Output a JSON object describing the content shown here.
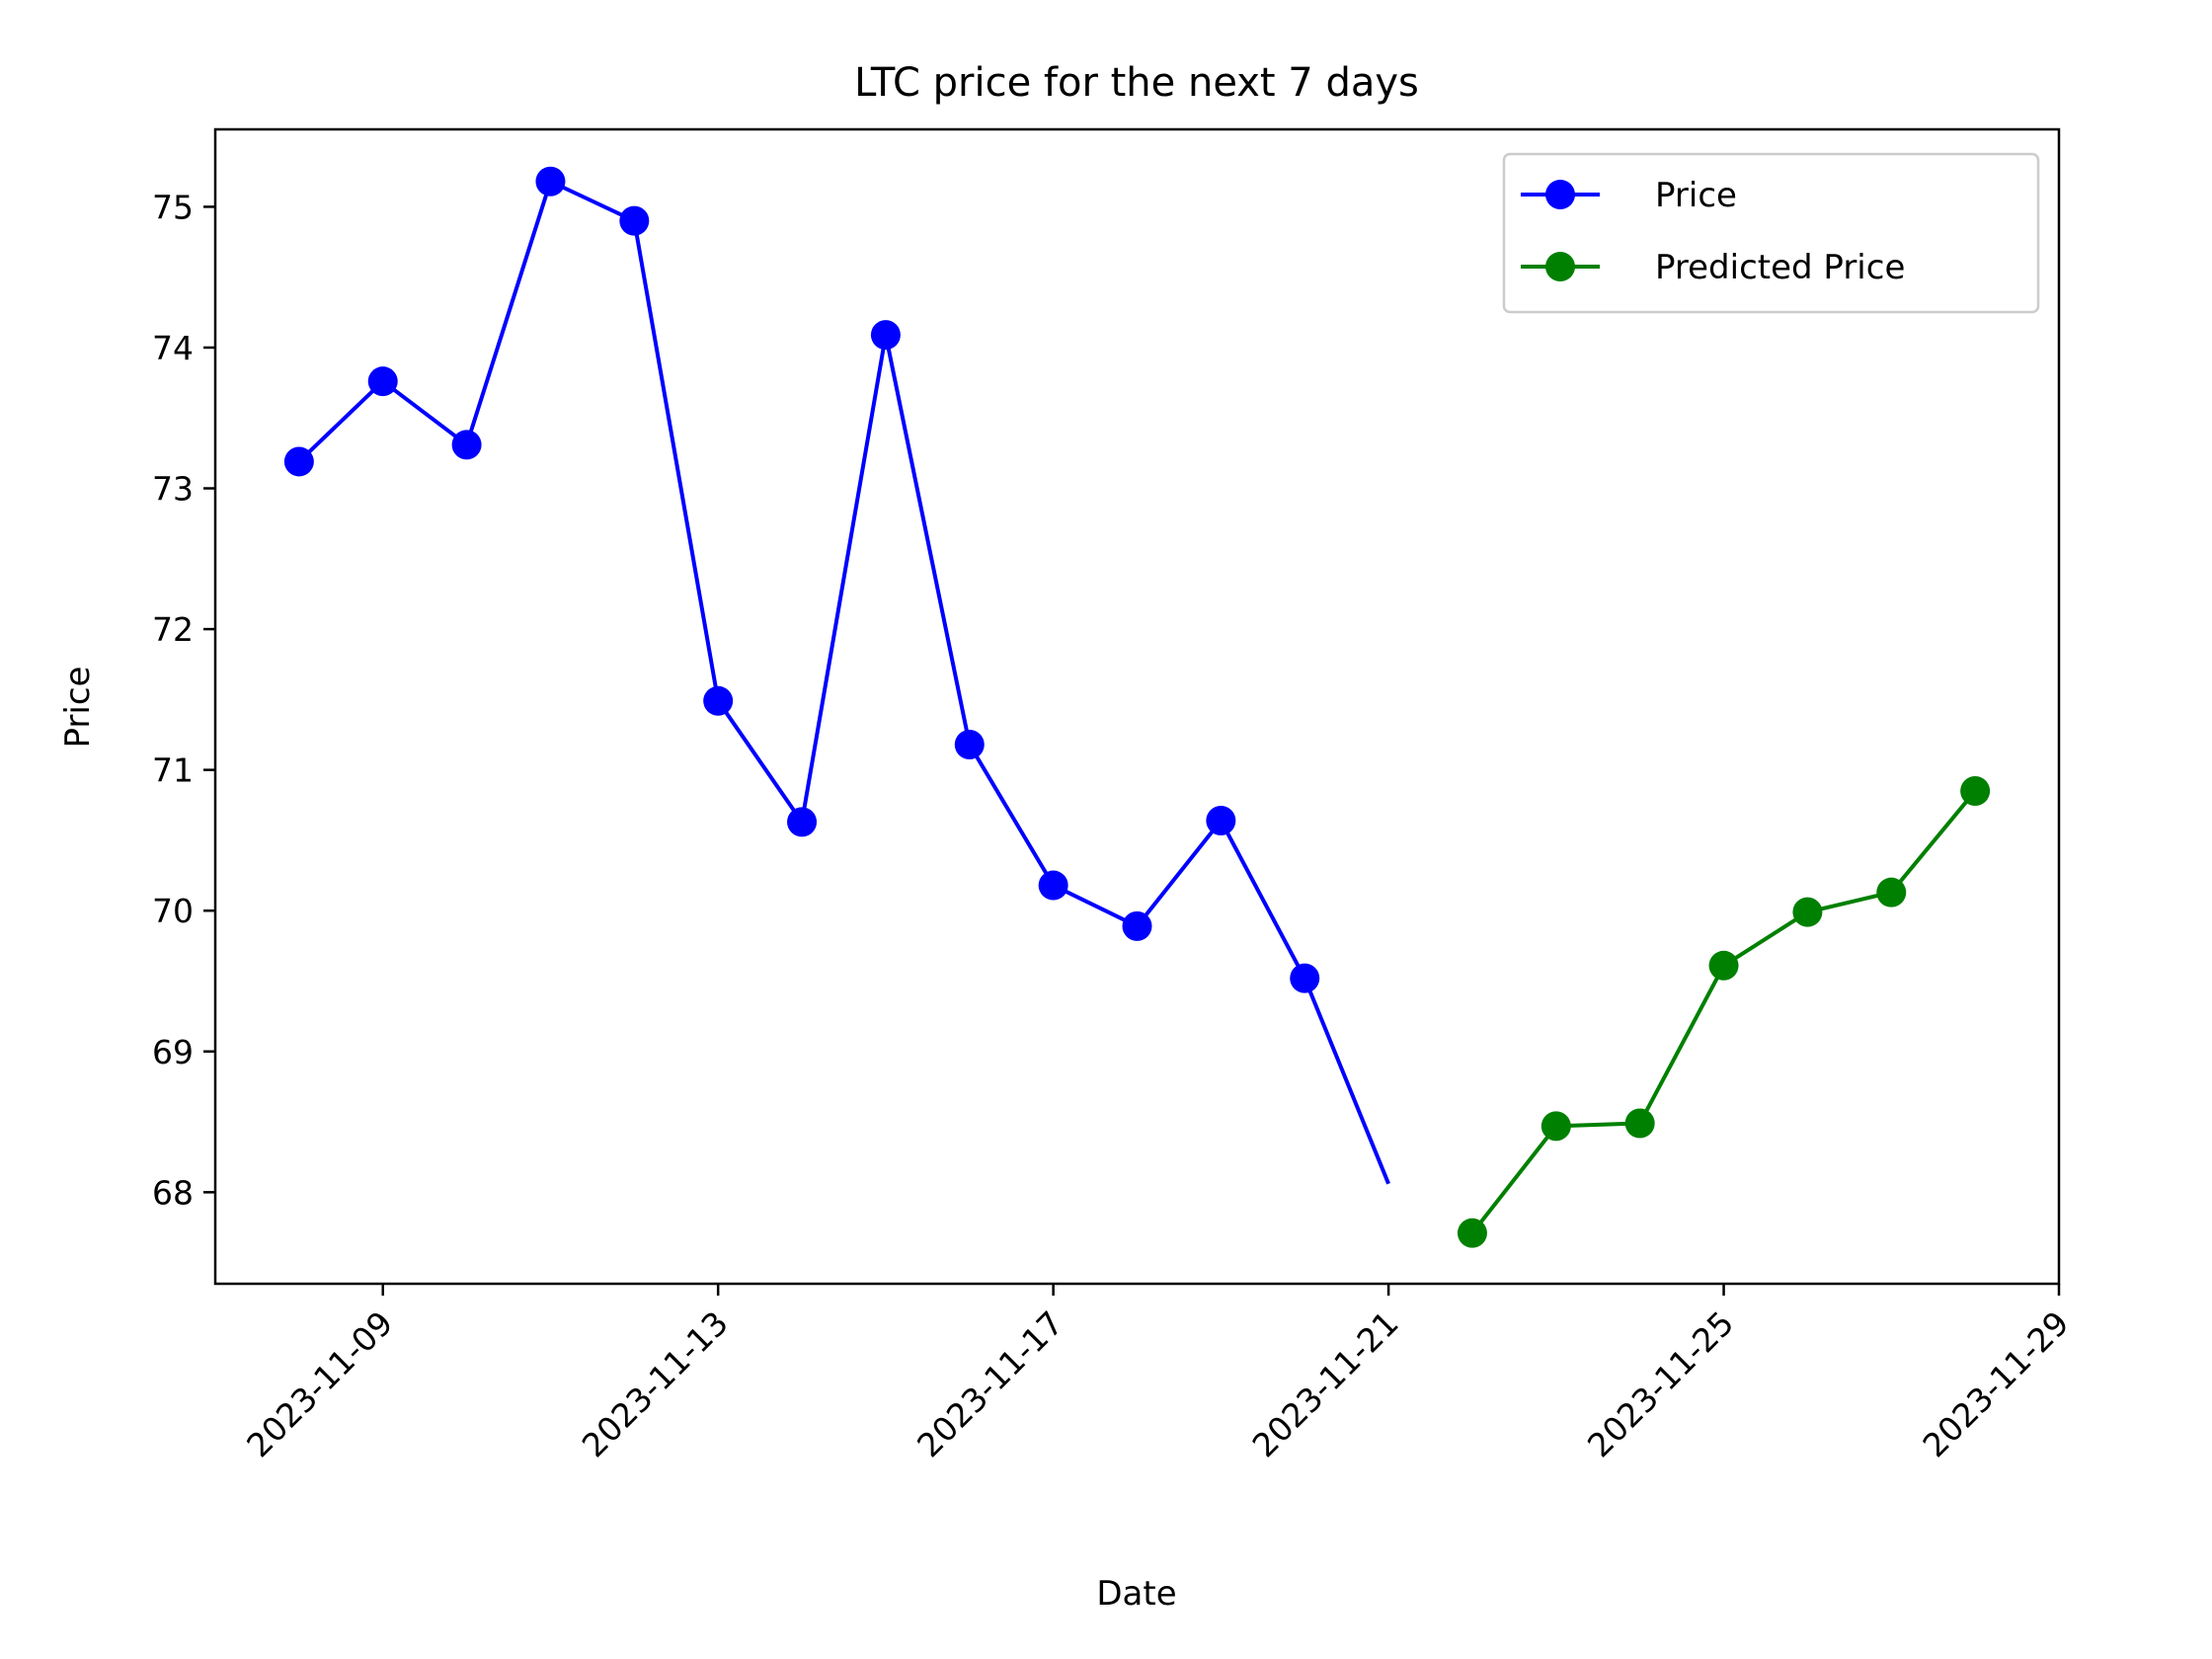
{
  "chart_data": {
    "type": "line",
    "title": "LTC price for the next 7 days",
    "xlabel": "Date",
    "ylabel": "Price",
    "xlim": [
      "2023-11-07",
      "2023-11-29"
    ],
    "ylim": [
      67.35,
      75.55
    ],
    "x_ticks": [
      "2023-11-09",
      "2023-11-13",
      "2023-11-17",
      "2023-11-21",
      "2023-11-25",
      "2023-11-29"
    ],
    "y_ticks": [
      68,
      69,
      70,
      71,
      72,
      73,
      74,
      75
    ],
    "grid": false,
    "legend_position": "top-right",
    "series": [
      {
        "name": "Price",
        "color": "#0000ff",
        "marker": "circle",
        "points": [
          {
            "x": "2023-11-08",
            "y": 73.19
          },
          {
            "x": "2023-11-09",
            "y": 73.76
          },
          {
            "x": "2023-11-10",
            "y": 73.31
          },
          {
            "x": "2023-11-11",
            "y": 75.18
          },
          {
            "x": "2023-11-12",
            "y": 74.9
          },
          {
            "x": "2023-11-13",
            "y": 71.49
          },
          {
            "x": "2023-11-14",
            "y": 70.63
          },
          {
            "x": "2023-11-15",
            "y": 74.09
          },
          {
            "x": "2023-11-16",
            "y": 71.18
          },
          {
            "x": "2023-11-17",
            "y": 70.18
          },
          {
            "x": "2023-11-18",
            "y": 69.89
          },
          {
            "x": "2023-11-19",
            "y": 70.64
          },
          {
            "x": "2023-11-20",
            "y": 69.52
          },
          {
            "x": "2023-11-21",
            "y": 68.06,
            "marker": false
          }
        ]
      },
      {
        "name": "Predicted Price",
        "color": "#008000",
        "marker": "circle",
        "points": [
          {
            "x": "2023-11-22",
            "y": 67.71
          },
          {
            "x": "2023-11-23",
            "y": 68.47
          },
          {
            "x": "2023-11-24",
            "y": 68.49
          },
          {
            "x": "2023-11-25",
            "y": 69.61
          },
          {
            "x": "2023-11-26",
            "y": 69.99
          },
          {
            "x": "2023-11-27",
            "y": 70.13
          },
          {
            "x": "2023-11-28",
            "y": 70.85
          }
        ]
      }
    ]
  }
}
